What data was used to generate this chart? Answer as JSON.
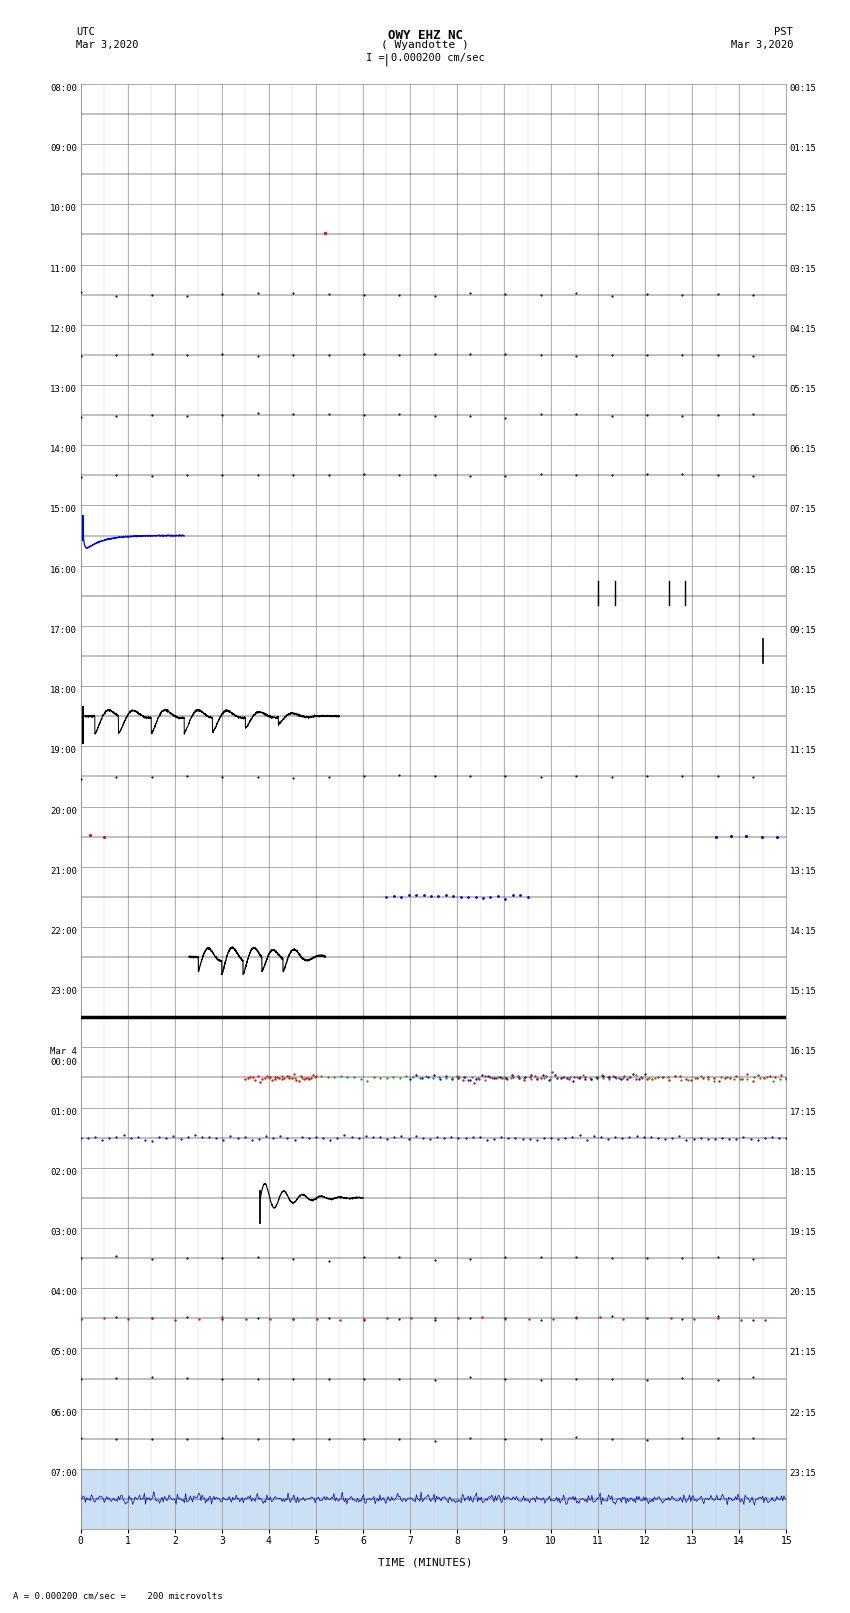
{
  "title_line1": "OWY EHZ NC",
  "title_line2": "( Wyandotte )",
  "title_scale": "I = 0.000200 cm/sec",
  "left_header1": "UTC",
  "left_header2": "Mar 3,2020",
  "right_header1": "PST",
  "right_header2": "Mar 3,2020",
  "bottom_label": "TIME (MINUTES)",
  "footer_label": " = 0.000200 cm/sec =    200 microvolts",
  "left_times": [
    "08:00",
    "09:00",
    "10:00",
    "11:00",
    "12:00",
    "13:00",
    "14:00",
    "15:00",
    "16:00",
    "17:00",
    "18:00",
    "19:00",
    "20:00",
    "21:00",
    "22:00",
    "23:00",
    "Mar 4\n00:00",
    "01:00",
    "02:00",
    "03:00",
    "04:00",
    "05:00",
    "06:00",
    "07:00"
  ],
  "right_times": [
    "00:15",
    "01:15",
    "02:15",
    "03:15",
    "04:15",
    "05:15",
    "06:15",
    "07:15",
    "08:15",
    "09:15",
    "10:15",
    "11:15",
    "12:15",
    "13:15",
    "14:15",
    "15:15",
    "16:15",
    "17:15",
    "18:15",
    "19:15",
    "20:15",
    "21:15",
    "22:15",
    "23:15"
  ],
  "n_rows": 24,
  "n_minutes": 15,
  "background_color": "#ffffff",
  "grid_color_major": "#999999",
  "grid_color_minor": "#cccccc",
  "figwidth": 8.5,
  "figheight": 16.13
}
